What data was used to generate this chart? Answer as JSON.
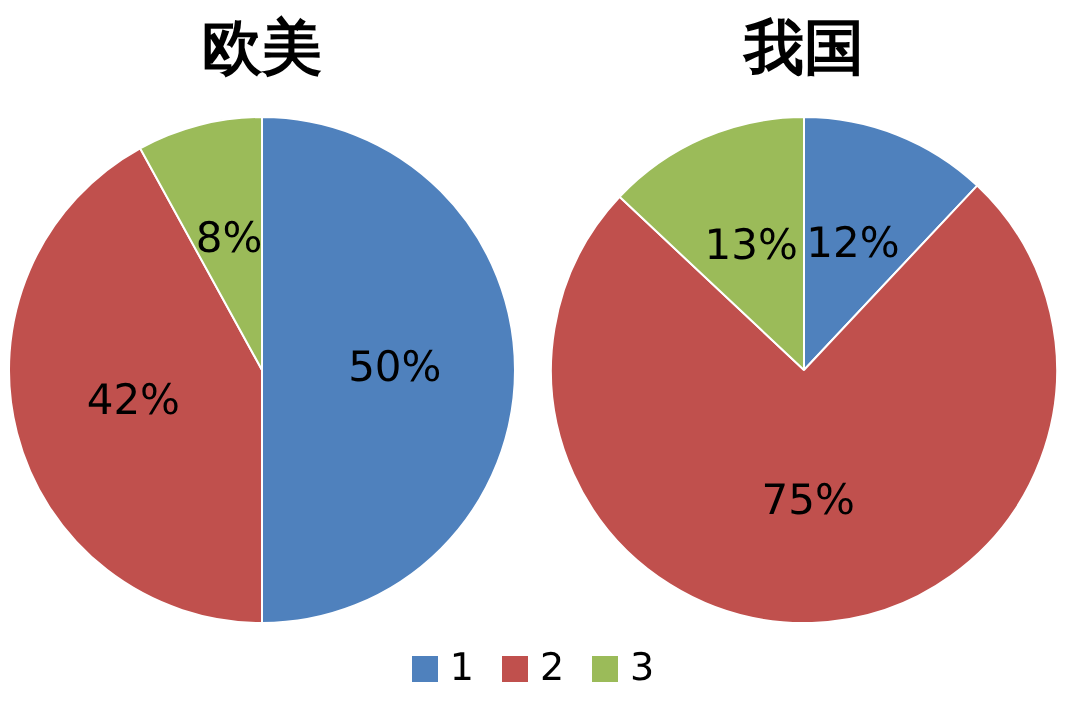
{
  "chart_data": [
    {
      "type": "pie",
      "title": "欧美",
      "categories": [
        "1",
        "2",
        "3"
      ],
      "values": [
        50,
        42,
        8
      ],
      "colors": [
        "#4f81bd",
        "#c0504d",
        "#9bbb59"
      ],
      "value_labels": [
        "50%",
        "42%",
        "8%"
      ],
      "legend": "bottom"
    },
    {
      "type": "pie",
      "title": "我国",
      "categories": [
        null,
        null,
        null
      ],
      "values": [
        12,
        75,
        13
      ],
      "colors": [
        "#4f81bd",
        "#c0504d",
        "#9bbb59"
      ],
      "value_labels": [
        "12%",
        "75%",
        "13%"
      ]
    }
  ]
}
